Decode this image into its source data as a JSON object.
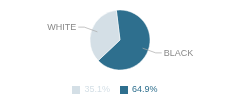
{
  "chart_data": {
    "type": "pie",
    "categories": [
      "BLACK",
      "WHITE"
    ],
    "values": [
      64.9,
      35.1
    ],
    "value_labels": [
      "64.9%",
      "35.1%"
    ],
    "colors": [
      "#2e6f8e",
      "#d4dfe6"
    ],
    "legend": "bottom"
  }
}
